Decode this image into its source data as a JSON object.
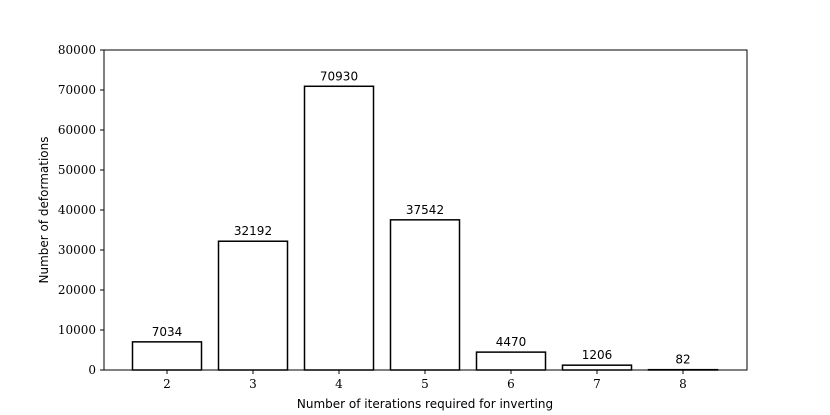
{
  "chart_data": {
    "type": "bar",
    "categories": [
      "2",
      "3",
      "4",
      "5",
      "6",
      "7",
      "8"
    ],
    "values": [
      7034,
      32192,
      70930,
      37542,
      4470,
      1206,
      82
    ],
    "data_labels": [
      "7034",
      "32192",
      "70930",
      "37542",
      "4470",
      "1206",
      "82"
    ],
    "title": "",
    "xlabel": "Number of iterations required for inverting",
    "ylabel": "Number of deformations",
    "ylim": [
      0,
      80000
    ],
    "yticks": [
      0,
      10000,
      20000,
      30000,
      40000,
      50000,
      60000,
      70000,
      80000
    ],
    "ytick_labels": [
      "0",
      "10000",
      "20000",
      "30000",
      "40000",
      "50000",
      "60000",
      "70000",
      "80000"
    ],
    "grid": false,
    "bar_fill": "#ffffff",
    "bar_edge": "#000000"
  }
}
